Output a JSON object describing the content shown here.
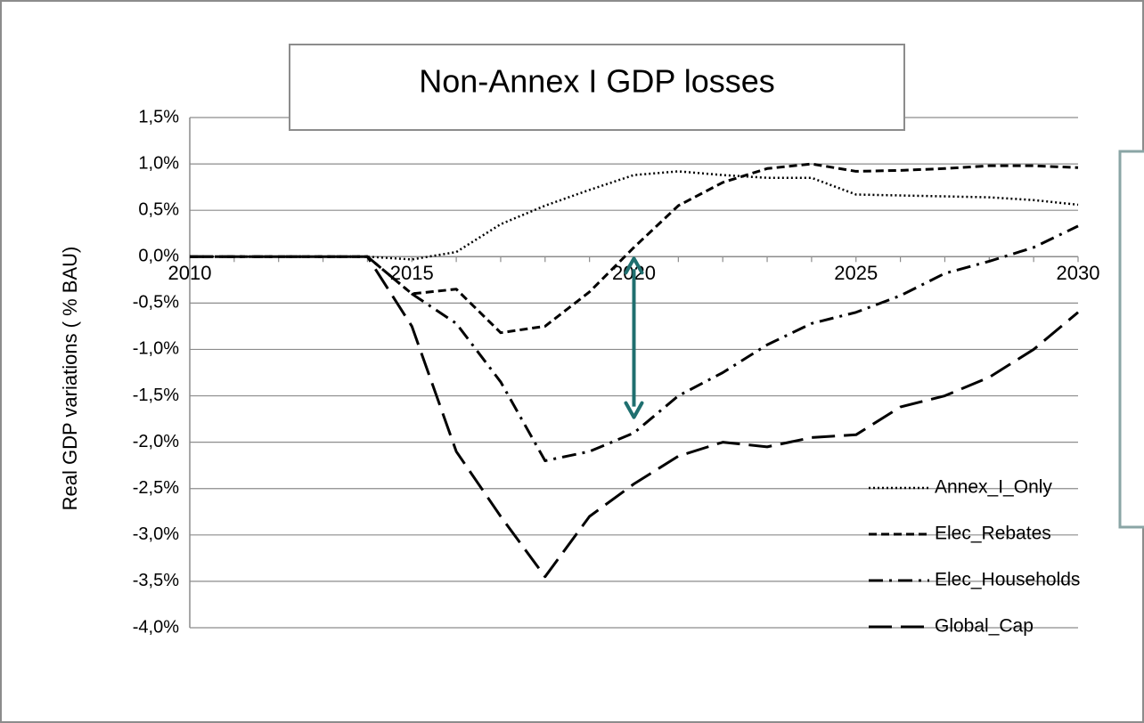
{
  "chart_data": {
    "type": "line",
    "title": "Non-Annex I GDP losses",
    "ylabel": "Real GDP variations ( % BAU)",
    "xlabel": "",
    "x": [
      2010,
      2011,
      2012,
      2013,
      2014,
      2015,
      2016,
      2017,
      2018,
      2019,
      2020,
      2021,
      2022,
      2023,
      2024,
      2025,
      2026,
      2027,
      2028,
      2029,
      2030
    ],
    "x_tick_labels": [
      "2010",
      "2015",
      "2020",
      "2025",
      "2030"
    ],
    "x_tick_values": [
      2010,
      2015,
      2020,
      2025,
      2030
    ],
    "y_tick_labels": [
      "1,5%",
      "1,0%",
      "0,5%",
      "0,0%",
      "-0,5%",
      "-1,0%",
      "-1,5%",
      "-2,0%",
      "-2,5%",
      "-3,0%",
      "-3,5%",
      "-4,0%"
    ],
    "ylim": [
      -4.0,
      1.5
    ],
    "y_step": 0.5,
    "grid": true,
    "legend_position": "bottom-right",
    "series": [
      {
        "name": "Annex_I_Only",
        "style": "dotted",
        "values": [
          0,
          0,
          0,
          0,
          0,
          -0.03,
          0.05,
          0.35,
          0.55,
          0.72,
          0.88,
          0.92,
          0.88,
          0.85,
          0.85,
          0.67,
          0.66,
          0.65,
          0.64,
          0.61,
          0.56
        ]
      },
      {
        "name": "Elec_Rebates",
        "style": "dashed",
        "values": [
          0,
          0,
          0,
          0,
          0,
          -0.4,
          -0.35,
          -0.82,
          -0.75,
          -0.38,
          0.1,
          0.55,
          0.8,
          0.95,
          1.0,
          0.92,
          0.93,
          0.95,
          0.98,
          0.98,
          0.96
        ]
      },
      {
        "name": "Elec_Households",
        "style": "dash-dot",
        "values": [
          0,
          0,
          0,
          0,
          0,
          -0.4,
          -0.72,
          -1.35,
          -2.2,
          -2.1,
          -1.9,
          -1.5,
          -1.25,
          -0.95,
          -0.72,
          -0.6,
          -0.42,
          -0.18,
          -0.05,
          0.1,
          0.33
        ]
      },
      {
        "name": "Global_Cap",
        "style": "long-dash",
        "values": [
          0,
          0,
          0,
          0,
          0,
          -0.75,
          -2.1,
          -2.8,
          -3.45,
          -2.8,
          -2.45,
          -2.15,
          -2.0,
          -2.05,
          -1.95,
          -1.92,
          -1.62,
          -1.5,
          -1.3,
          -1.0,
          -0.6
        ]
      }
    ],
    "annotation": {
      "type": "double-arrow",
      "x": 2020,
      "y_from": 0.0,
      "y_to": -1.75,
      "color": "#1f6f6f"
    }
  }
}
